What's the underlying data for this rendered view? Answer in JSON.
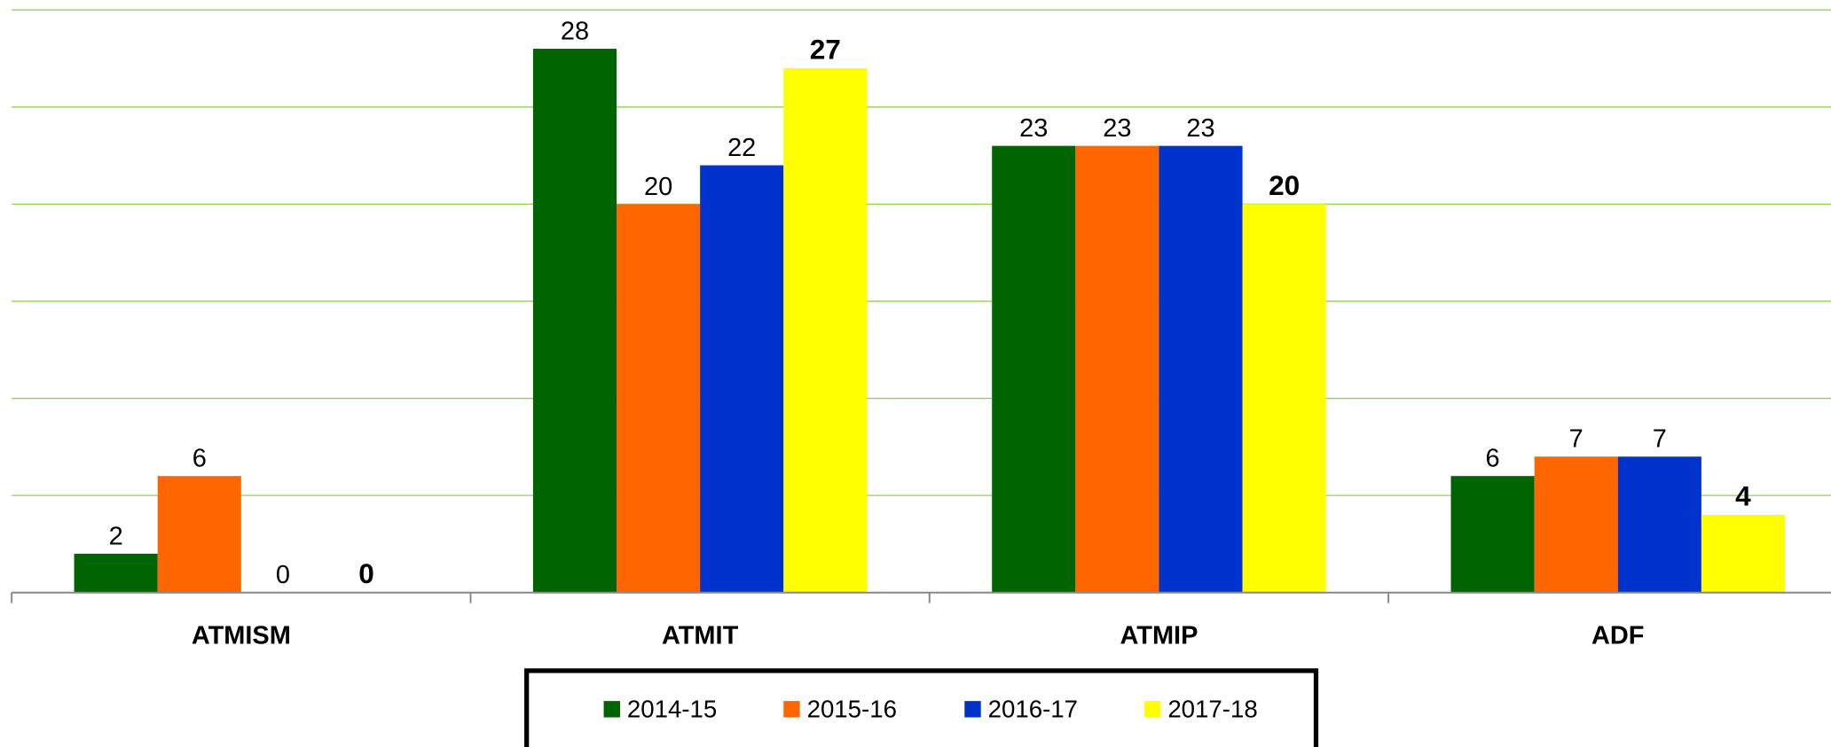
{
  "chart_data": {
    "type": "bar",
    "categories": [
      "ATMISM",
      "ATMIT",
      "ATMIP",
      "ADF"
    ],
    "series": [
      {
        "name": "2014-15",
        "color": "#006400",
        "values": [
          2,
          28,
          23,
          6
        ]
      },
      {
        "name": "2015-16",
        "color": "#ff6600",
        "values": [
          6,
          20,
          23,
          7
        ]
      },
      {
        "name": "2016-17",
        "color": "#0033cc",
        "values": [
          0,
          22,
          23,
          7
        ]
      },
      {
        "name": "2017-18",
        "color": "#ffff00",
        "values": [
          0,
          27,
          20,
          4
        ]
      }
    ],
    "ylim": [
      0,
      30
    ],
    "yticks": [
      0,
      5,
      10,
      15,
      20,
      25,
      30
    ],
    "grid": true,
    "legend": "bottom"
  }
}
